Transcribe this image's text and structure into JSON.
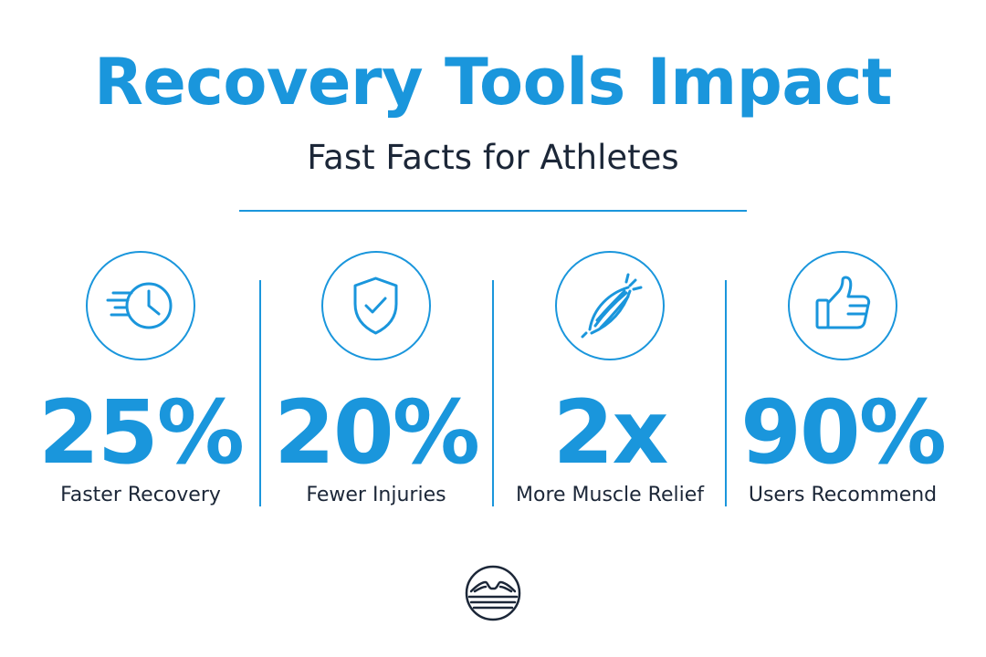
{
  "header": {
    "title": "Recovery Tools Impact",
    "subtitle": "Fast Facts for Athletes"
  },
  "colors": {
    "accent": "#1a96dc",
    "text_dark": "#1c2738"
  },
  "stats": [
    {
      "icon": "fast-clock-icon",
      "value": "25%",
      "label": "Faster Recovery"
    },
    {
      "icon": "shield-check-icon",
      "value": "20%",
      "label": "Fewer Injuries"
    },
    {
      "icon": "muscle-icon",
      "value": "2x",
      "label": "More Muscle Relief"
    },
    {
      "icon": "thumbs-up-icon",
      "value": "90%",
      "label": "Users Recommend"
    }
  ],
  "logo": {
    "icon": "brand-logo-icon"
  }
}
